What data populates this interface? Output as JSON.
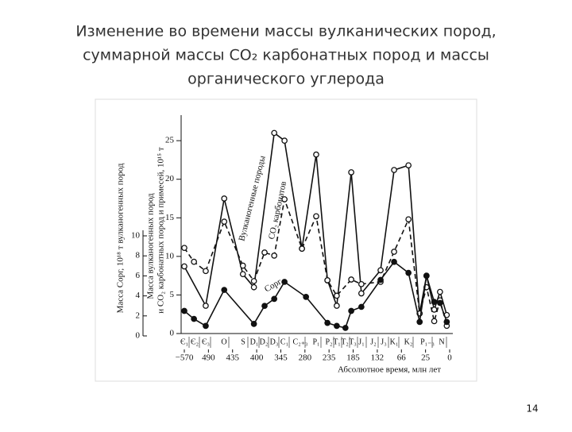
{
  "chart_data": {
    "type": "line",
    "title": [
      "Изменение во времени массы вулканических пород,",
      "суммарной массы CO₂ карбонатных пород и массы",
      "органического углерода"
    ],
    "xlabel": "Абсолютное время, млн лет",
    "ylabel": [
      "Масса вулканогенных пород",
      "и CO₂ карбонатных пород и примесей, 10¹⁵ т"
    ],
    "y2label": "Масса Cорг, 10¹⁸ т вулканогенных пород",
    "period_labels": [
      "Є₁",
      "Є₂",
      "Є₃",
      "O",
      "S",
      "D₁",
      "D₂",
      "D₃",
      "C₁",
      "C₂₊₃",
      "P₁",
      "P₂",
      "T₁",
      "T₂",
      "T₃",
      "J₁",
      "J₂",
      "J₃",
      "K₁",
      "K₂",
      "P₁₋₃",
      "N"
    ],
    "annotations": [
      "Вулканогенные породы",
      "CO₂ карбонатов",
      "Cорг"
    ],
    "page_number": "14",
    "xlim": [
      570,
      0
    ],
    "xticks": [
      {
        "value": 570,
        "label": "−570"
      },
      490,
      435,
      400,
      345,
      280,
      235,
      185,
      132,
      66,
      25,
      0
    ],
    "ylim": [
      0,
      28
    ],
    "yticks": [
      0,
      5,
      10,
      15,
      20,
      25
    ],
    "y2lim": [
      0,
      10
    ],
    "y2ticks": [
      0,
      2,
      4,
      6,
      8,
      10
    ],
    "series": [
      {
        "name": "Вулканогенные породы",
        "color": "#111111",
        "dash": false,
        "marker": "open",
        "x": [
          570,
          499,
          454,
          420,
          404,
          360,
          335,
          288,
          259,
          238,
          219,
          189,
          167,
          123,
          86,
          54,
          35,
          24,
          16,
          10,
          3
        ],
        "values": [
          8.7,
          3.6,
          17.5,
          7.7,
          6.0,
          26,
          25,
          11,
          23.2,
          6.9,
          3.6,
          20.9,
          5.2,
          8.2,
          21.2,
          21.8,
          2.6,
          7.5,
          3.1,
          5.4,
          2.4
        ]
      },
      {
        "name": "CO₂ карбонатов",
        "color": "#111111",
        "dash": true,
        "marker": "open",
        "x": [
          570,
          538,
          499,
          454,
          420,
          404,
          382,
          360,
          335,
          288,
          259,
          238,
          219,
          189,
          167,
          123,
          86,
          54,
          35,
          24,
          16,
          10,
          3
        ],
        "values": [
          11.1,
          9.3,
          8.1,
          14.5,
          8.8,
          6.8,
          10.5,
          10.1,
          17.4,
          11,
          15.2,
          6.9,
          4.9,
          7,
          6.4,
          6.7,
          10.6,
          14.8,
          2.6,
          6,
          1.6,
          4.3,
          1
        ]
      },
      {
        "name": "Cорг",
        "color": "#111111",
        "dash": false,
        "marker": "filled",
        "axis": "y2",
        "x": [
          570,
          538,
          499,
          454,
          404,
          382,
          360,
          335,
          278,
          238,
          219,
          201,
          189,
          167,
          123,
          86,
          54,
          35,
          24,
          16,
          10,
          3
        ],
        "values": [
          2.5,
          1.7,
          1,
          4.6,
          1.2,
          3,
          3.7,
          5.4,
          3.9,
          1.3,
          1,
          0.8,
          2.5,
          2.9,
          5.6,
          7.4,
          6.3,
          1.4,
          6,
          3.4,
          3.3,
          1.4
        ]
      }
    ]
  }
}
